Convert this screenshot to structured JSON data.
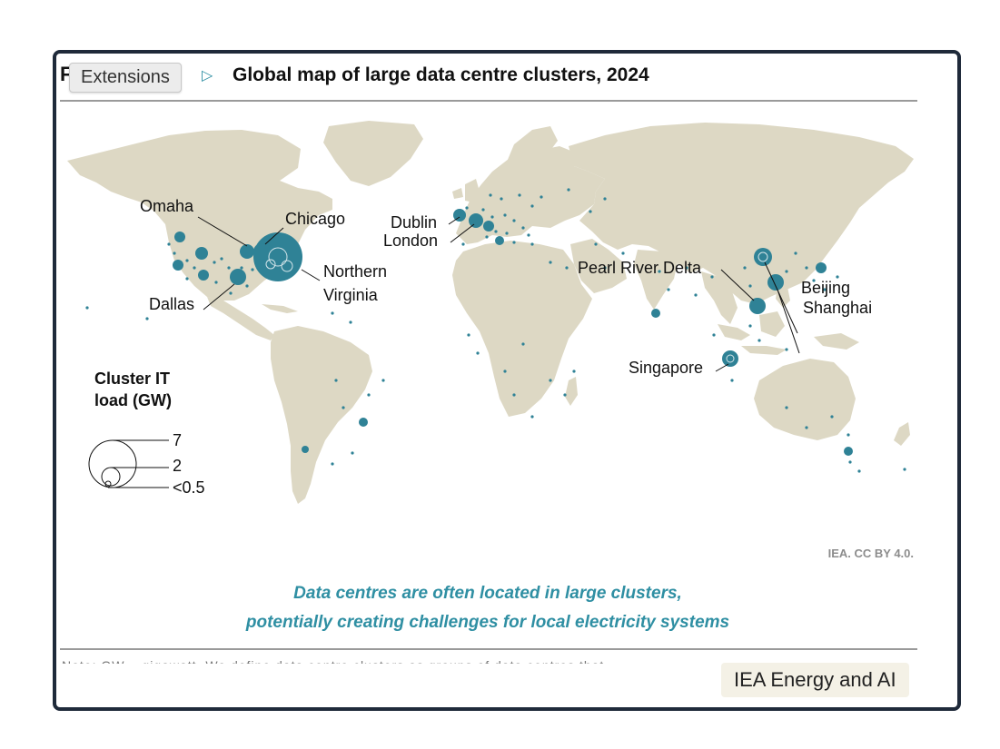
{
  "figure": {
    "prefix": "F",
    "title": "Global map of large data centre clusters, 2024",
    "credit": "IEA. CC BY 4.0.",
    "caption_lines": [
      "Data centres are often located in large clusters,",
      "potentially creating challenges for local electricity systems"
    ],
    "note_cut": "Note: GW = gigawatt. We define data centre clusters as groups of data centres that..."
  },
  "tooltip": {
    "label": "Extensions"
  },
  "source_badge": {
    "label": "IEA Energy and AI"
  },
  "legend": {
    "title_line1": "Cluster IT",
    "title_line2": "load (GW)",
    "sizes": [
      "7",
      "2",
      "<0.5"
    ]
  },
  "colors": {
    "land": "#ddd8c4",
    "bubble": "#2f8296",
    "caption": "#2f8fa3",
    "frame": "#1f2a3a"
  },
  "cluster_labels": {
    "omaha": "Omaha",
    "chicago": "Chicago",
    "northern_virginia_1": "Northern",
    "northern_virginia_2": "Virginia",
    "dallas": "Dallas",
    "dublin": "Dublin",
    "london": "London",
    "pearl_river_delta": "Pearl River Delta",
    "beijing": "Beijing",
    "shanghai": "Shanghai",
    "singapore": "Singapore"
  }
}
